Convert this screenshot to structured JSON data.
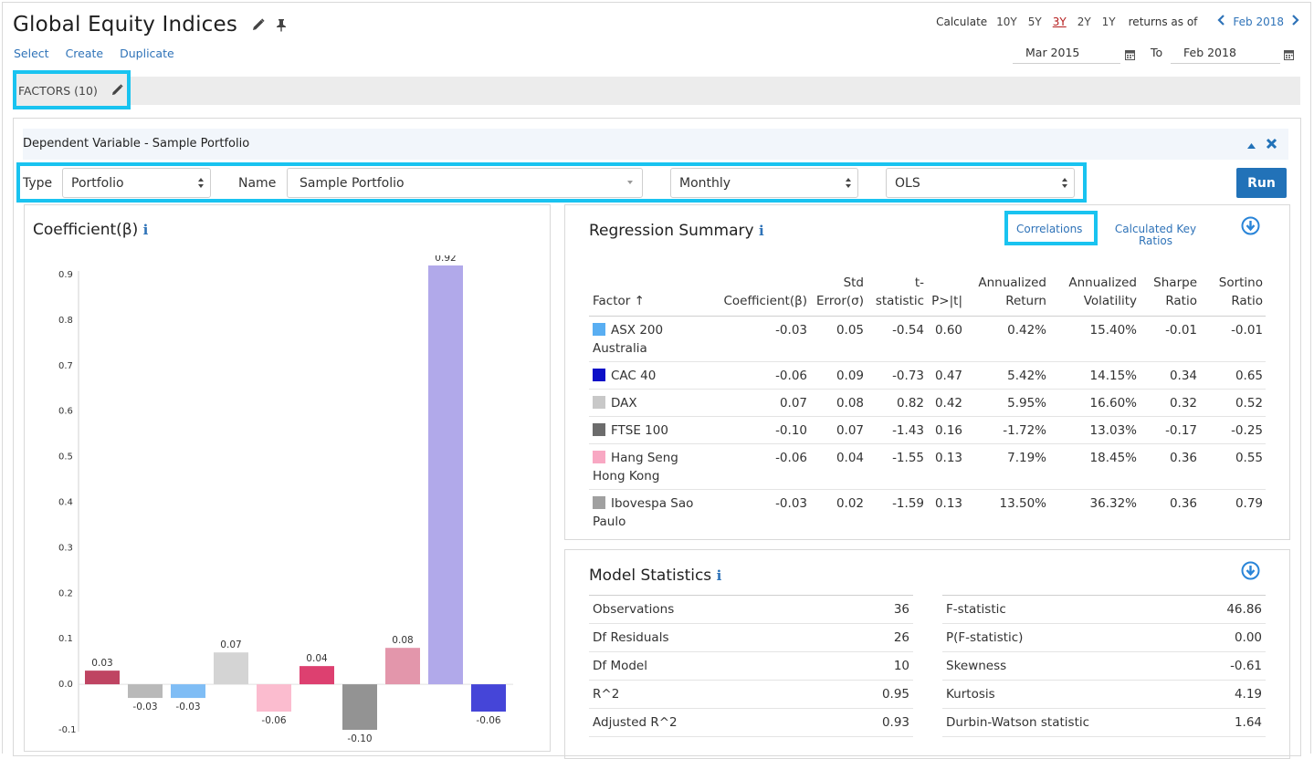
{
  "header": {
    "title": "Global Equity Indices",
    "links": [
      "Select",
      "Create",
      "Duplicate"
    ]
  },
  "period": {
    "calculate_label": "Calculate",
    "options": [
      "10Y",
      "5Y",
      "3Y",
      "2Y",
      "1Y"
    ],
    "active": "3Y",
    "returns_label": "returns as of",
    "as_of": "Feb 2018",
    "from": "Mar 2015",
    "to_label": "To",
    "to": "Feb 2018"
  },
  "factors": {
    "label": "FACTORS (10)"
  },
  "dependent": {
    "header": "Dependent Variable - Sample Portfolio",
    "type_label": "Type",
    "type_value": "Portfolio",
    "name_label": "Name",
    "name_value": "Sample Portfolio",
    "frequency": "Monthly",
    "method": "OLS",
    "run_label": "Run"
  },
  "coefficient_panel": {
    "title": "Coefficient(β)"
  },
  "chart_data": {
    "type": "bar",
    "title": "Coefficient(β)",
    "ylim": [
      -0.1,
      0.9
    ],
    "y_ticks": [
      "0.9",
      "0.8",
      "0.7",
      "0.6",
      "0.5",
      "0.4",
      "0.3",
      "0.2",
      "0.1",
      "0.0",
      "-0.1"
    ],
    "y_tick_values": [
      0.9,
      0.8,
      0.7,
      0.6,
      0.5,
      0.4,
      0.3,
      0.2,
      0.1,
      0.0,
      -0.1
    ],
    "values": [
      0.03,
      -0.03,
      -0.03,
      0.07,
      -0.06,
      0.04,
      -0.1,
      0.08,
      0.92,
      -0.06
    ],
    "labels": [
      "0.03",
      "-0.03",
      "-0.03",
      "0.07",
      "-0.06",
      "0.04",
      "-0.10",
      "0.08",
      "0.92",
      "-0.06"
    ],
    "colors": [
      "#bf4462",
      "#b9b9b9",
      "#7fbdf5",
      "#d4d4d4",
      "#fbbccf",
      "#dd4070",
      "#939393",
      "#e396ab",
      "#b1a9ea",
      "#4545d8"
    ],
    "grid": false
  },
  "regression": {
    "title": "Regression Summary",
    "correlations_link": "Correlations",
    "key_ratios_link": "Calculated Key Ratios",
    "columns": [
      "Factor ↑",
      "Coefficient(β)",
      "Std Error(σ)",
      "t-statistic",
      "P>|t|",
      "Annualized Return",
      "Annualized Volatility",
      "Sharpe Ratio",
      "Sortino Ratio"
    ],
    "rows": [
      {
        "factor": "ASX 200 Australia",
        "color": "#59aef2",
        "coef": "-0.03",
        "se": "0.05",
        "t": "-0.54",
        "p": "0.60",
        "ret": "0.42%",
        "vol": "15.40%",
        "sharpe": "-0.01",
        "sortino": "-0.01"
      },
      {
        "factor": "CAC 40",
        "color": "#0c10c8",
        "coef": "-0.06",
        "se": "0.09",
        "t": "-0.73",
        "p": "0.47",
        "ret": "5.42%",
        "vol": "14.15%",
        "sharpe": "0.34",
        "sortino": "0.65"
      },
      {
        "factor": "DAX",
        "color": "#c8c8c8",
        "coef": "0.07",
        "se": "0.08",
        "t": "0.82",
        "p": "0.42",
        "ret": "5.95%",
        "vol": "16.60%",
        "sharpe": "0.32",
        "sortino": "0.52"
      },
      {
        "factor": "FTSE 100",
        "color": "#6c6c6c",
        "coef": "-0.10",
        "se": "0.07",
        "t": "-1.43",
        "p": "0.16",
        "ret": "-1.72%",
        "vol": "13.03%",
        "sharpe": "-0.17",
        "sortino": "-0.25"
      },
      {
        "factor": "Hang Seng Hong Kong",
        "color": "#f8a8c3",
        "coef": "-0.06",
        "se": "0.04",
        "t": "-1.55",
        "p": "0.13",
        "ret": "7.19%",
        "vol": "18.45%",
        "sharpe": "0.36",
        "sortino": "0.55"
      },
      {
        "factor": "Ibovespa Sao Paulo",
        "color": "#a0a0a0",
        "coef": "-0.03",
        "se": "0.02",
        "t": "-1.59",
        "p": "0.13",
        "ret": "13.50%",
        "vol": "36.32%",
        "sharpe": "0.36",
        "sortino": "0.79"
      }
    ]
  },
  "model": {
    "title": "Model Statistics",
    "left": [
      {
        "k": "Observations",
        "v": "36"
      },
      {
        "k": "Df Residuals",
        "v": "26"
      },
      {
        "k": "Df Model",
        "v": "10"
      },
      {
        "k": "R^2",
        "v": "0.95"
      },
      {
        "k": "Adjusted R^2",
        "v": "0.93"
      }
    ],
    "right": [
      {
        "k": "F-statistic",
        "v": "46.86"
      },
      {
        "k": "P(F-statistic)",
        "v": "0.00"
      },
      {
        "k": "Skewness",
        "v": "-0.61"
      },
      {
        "k": "Kurtosis",
        "v": "4.19"
      },
      {
        "k": "Durbin-Watson statistic",
        "v": "1.64"
      }
    ]
  },
  "icons": {
    "edit": "pencil-icon",
    "pin": "pin-icon",
    "calendar": "calendar-icon",
    "download": "download-icon",
    "collapse": "chevron-up-icon",
    "close": "close-icon",
    "info": "info-icon"
  }
}
